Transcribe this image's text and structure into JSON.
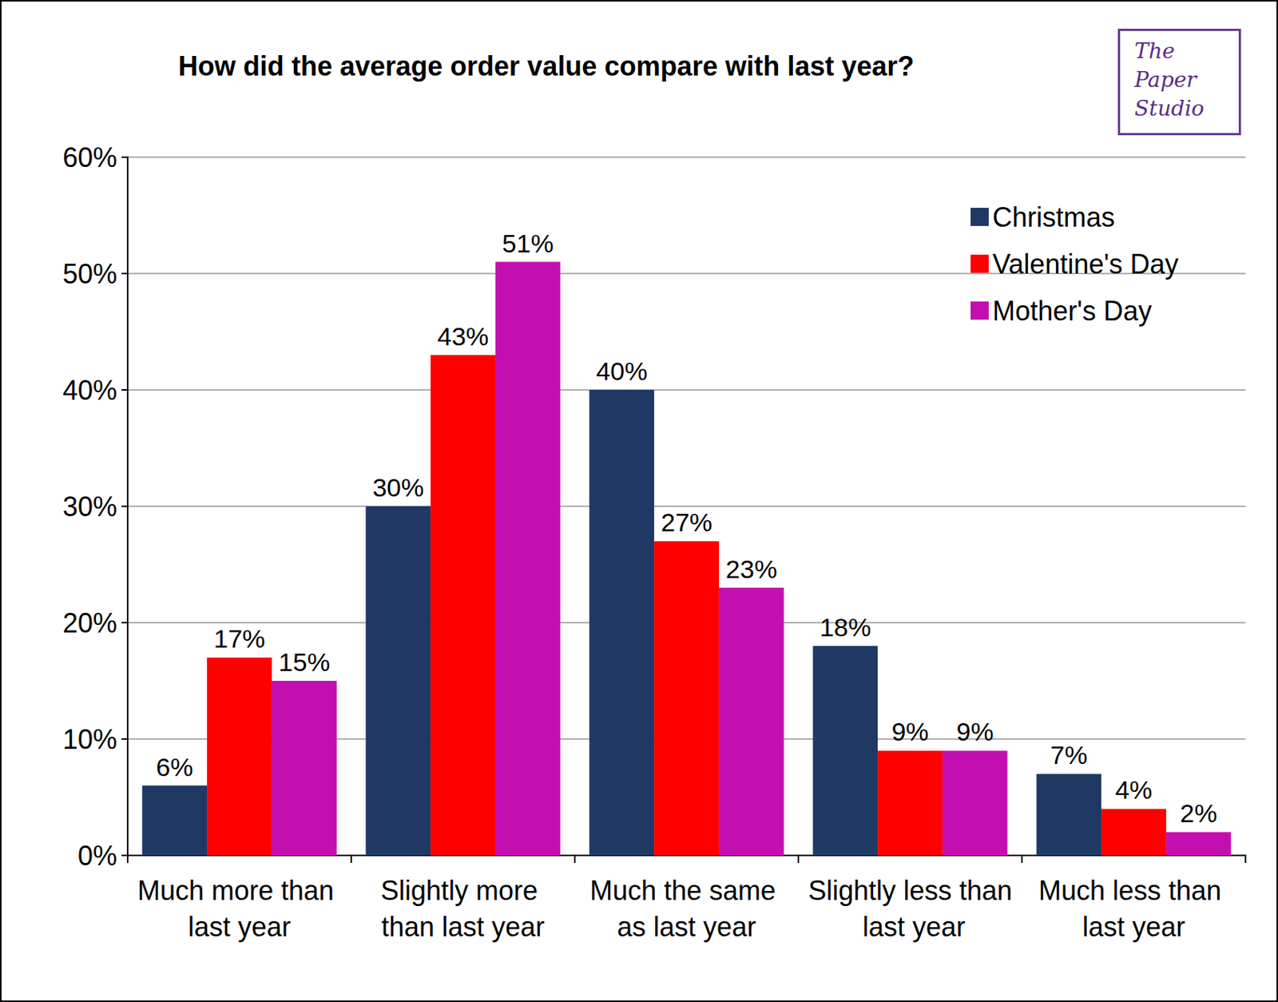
{
  "chart_data": {
    "type": "bar",
    "title": "How did the average order value compare with last year?",
    "logo": "The Paper Studio",
    "categories": [
      "Much more than last year",
      "Slightly more than last year",
      "Much the same as last year",
      "Slightly less than last year",
      "Much less than last year"
    ],
    "series": [
      {
        "name": "Christmas",
        "color": "#203864",
        "values": [
          6,
          30,
          40,
          18,
          7
        ],
        "value_labels": [
          "6%",
          "30%",
          "40%",
          "18%",
          "7%"
        ]
      },
      {
        "name": "Valentine's Day",
        "color": "#ff0000",
        "values": [
          17,
          43,
          27,
          9,
          4
        ],
        "value_labels": [
          "17%",
          "43%",
          "27%",
          "9%",
          "4%"
        ]
      },
      {
        "name": "Mother's Day",
        "color": "#c40fb0",
        "values": [
          15,
          51,
          23,
          9,
          2
        ],
        "value_labels": [
          "15%",
          "51%",
          "23%",
          "9%",
          "2%"
        ]
      }
    ],
    "ylim": [
      0,
      60
    ],
    "yticks": [
      {
        "value": 0,
        "label": "0%"
      },
      {
        "value": 10,
        "label": "10%"
      },
      {
        "value": 20,
        "label": "20%"
      },
      {
        "value": 30,
        "label": "30%"
      },
      {
        "value": 40,
        "label": "40%"
      },
      {
        "value": 50,
        "label": "50%"
      },
      {
        "value": 60,
        "label": "60%"
      }
    ],
    "grid": true,
    "legend": "top-right",
    "data_labels": true
  }
}
